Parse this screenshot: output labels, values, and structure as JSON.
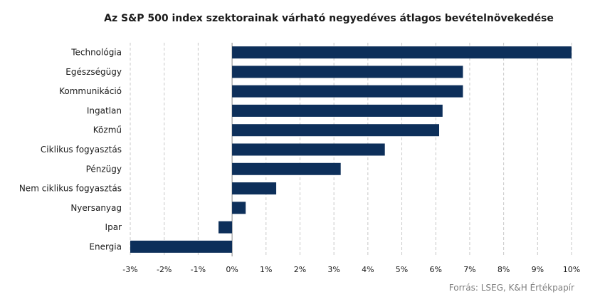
{
  "chart_data": {
    "type": "bar",
    "orientation": "horizontal",
    "title": "Az S&P 500 index szektorainak várható negyedéves átlagos bevételnövekedése",
    "categories": [
      "Technológia",
      "Egészségügy",
      "Kommunikáció",
      "Ingatlan",
      "Közmű",
      "Ciklikus fogyasztás",
      "Pénzügy",
      "Nem ciklikus fogyasztás",
      "Nyersanyag",
      "Ipar",
      "Energia"
    ],
    "values": [
      10.0,
      6.8,
      6.8,
      6.2,
      6.1,
      4.5,
      3.2,
      1.3,
      0.4,
      -0.4,
      -3.0
    ],
    "xlim": [
      -3,
      10
    ],
    "x_ticks": [
      -3,
      -2,
      -1,
      0,
      1,
      2,
      3,
      4,
      5,
      6,
      7,
      8,
      9,
      10
    ],
    "x_tick_labels": [
      "-3%",
      "-2%",
      "-1%",
      "0%",
      "1%",
      "2%",
      "3%",
      "4%",
      "5%",
      "6%",
      "7%",
      "8%",
      "9%",
      "10%"
    ],
    "grid": "vertical dashed",
    "bar_color": "#0d2f5a",
    "source": "Forrás: LSEG, K&H Értékpapír"
  }
}
